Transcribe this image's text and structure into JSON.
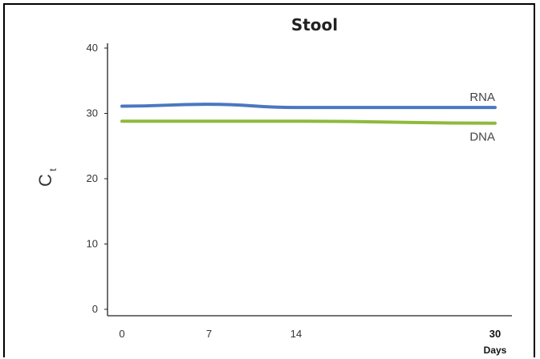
{
  "chart_data": {
    "type": "line",
    "title": "Stool",
    "ylabel": "C",
    "ylabel_subscript": "t",
    "x_unit_label": "Days",
    "x": [
      0,
      7,
      14,
      30
    ],
    "x_tick_labels": [
      "0",
      "7",
      "14",
      "30"
    ],
    "y_ticks": [
      0,
      10,
      20,
      30,
      40
    ],
    "y_tick_labels": [
      "0",
      "10",
      "20",
      "30",
      "40"
    ],
    "ylim": [
      0,
      40
    ],
    "grid": false,
    "series": [
      {
        "name": "RNA",
        "color": "#4a78c0",
        "x": [
          0,
          7,
          14,
          30
        ],
        "values": [
          31.1,
          31.4,
          30.9,
          30.9
        ]
      },
      {
        "name": "DNA",
        "color": "#8dba3c",
        "x": [
          0,
          7,
          14,
          30
        ],
        "values": [
          28.8,
          28.8,
          28.8,
          28.5
        ]
      }
    ]
  }
}
